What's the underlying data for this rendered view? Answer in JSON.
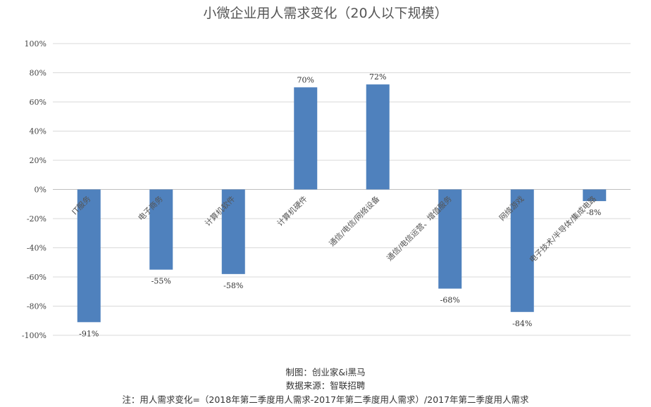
{
  "chart_data": {
    "type": "bar",
    "title": "小微企业用人需求变化（20人以下规模）",
    "categories": [
      "IT服务",
      "电子商务",
      "计算机软件",
      "计算机硬件",
      "通信/电信/网络设备",
      "通信/电信运营、增值服务",
      "网络游戏",
      "电子技术/半导体/集成电路"
    ],
    "values": [
      -91,
      -55,
      -58,
      70,
      72,
      -68,
      -84,
      -8
    ],
    "data_labels": [
      "-91%",
      "-55%",
      "-58%",
      "70%",
      "72%",
      "-68%",
      "-84%",
      "-8%"
    ],
    "ylim": [
      -100,
      100
    ],
    "yticks": [
      {
        "value": 100,
        "label": "100%"
      },
      {
        "value": 80,
        "label": "80%"
      },
      {
        "value": 60,
        "label": "60%"
      },
      {
        "value": 40,
        "label": "40%"
      },
      {
        "value": 20,
        "label": "20%"
      },
      {
        "value": 0,
        "label": "0%"
      },
      {
        "value": -20,
        "label": "-20%"
      },
      {
        "value": -40,
        "label": "-40%"
      },
      {
        "value": -60,
        "label": "-60%"
      },
      {
        "value": -80,
        "label": "-80%"
      },
      {
        "value": -100,
        "label": "-100%"
      }
    ],
    "grid": true,
    "bar_color": "#4f81bd"
  },
  "footer": {
    "maker": "制图：创业家&i黑马",
    "source": "数据来源：智联招聘",
    "note": "注：用人需求变化=（2018年第二季度用人需求-2017年第二季度用人需求）/2017年第二季度用人需求"
  }
}
